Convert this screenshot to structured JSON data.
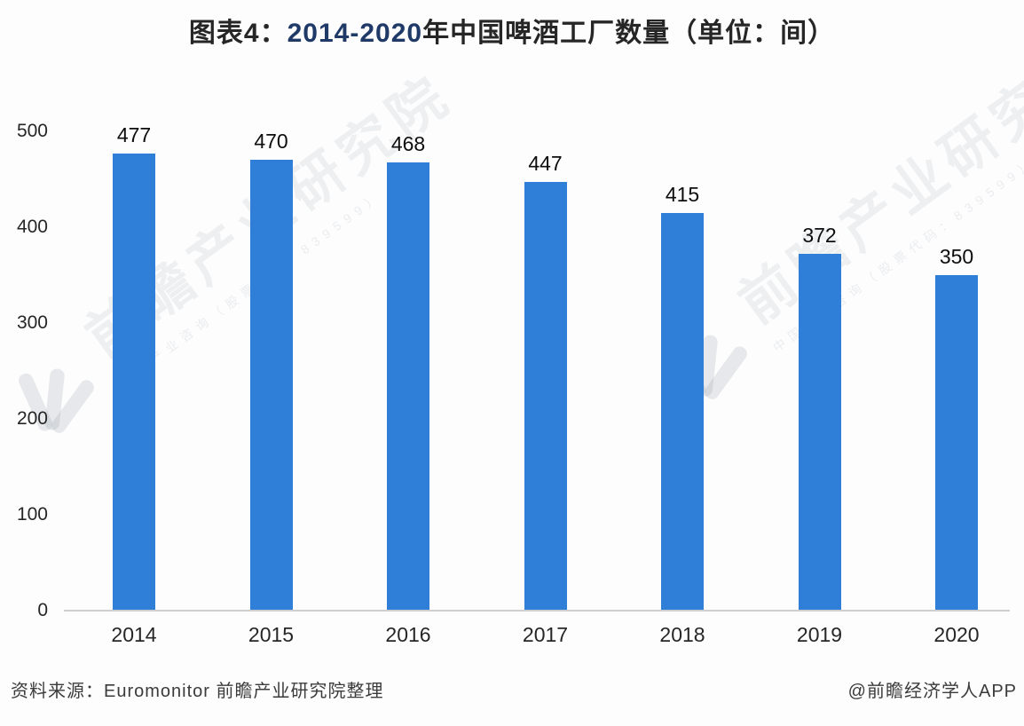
{
  "title": {
    "prefix": "图表4：",
    "range": "2014-2020",
    "suffix": "年中国啤酒工厂数量（单位：间）"
  },
  "chart_data": {
    "type": "bar",
    "categories": [
      "2014",
      "2015",
      "2016",
      "2017",
      "2018",
      "2019",
      "2020"
    ],
    "values": [
      477,
      470,
      468,
      447,
      415,
      372,
      350
    ],
    "title": "图表4：2014-2020年中国啤酒工厂数量（单位：间）",
    "xlabel": "",
    "ylabel": "",
    "ylim": [
      0,
      500
    ],
    "yticks": [
      0,
      100,
      200,
      300,
      400,
      500
    ],
    "grid": false,
    "legend": false,
    "data_labels": true,
    "bar_color": "#2f7ed8"
  },
  "footer": {
    "source": "资料来源：Euromonitor 前瞻产业研究院整理",
    "credit": "@前瞻经济学人APP"
  },
  "watermark": {
    "text": "前瞻产业研究院",
    "sub_text": "中国产业咨询（股票代码：839599）"
  },
  "colors": {
    "bar": "#2f7ed8",
    "title_range": "#203a68",
    "text_dark": "#262626",
    "axis_line": "#cfcfcf"
  }
}
